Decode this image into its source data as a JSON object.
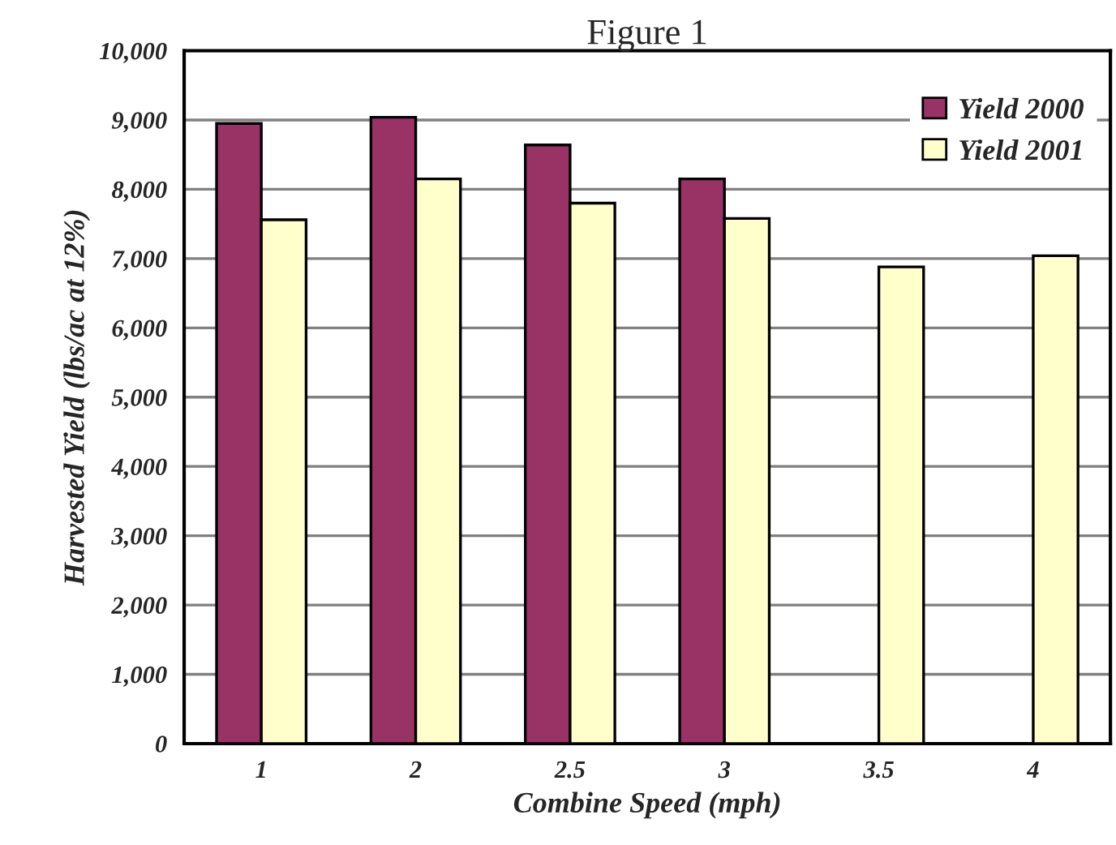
{
  "chart_data": {
    "type": "bar",
    "title": "Figure 1",
    "xlabel": "Combine Speed (mph)",
    "ylabel": "Harvested Yield (lbs/ac at 12%)",
    "categories": [
      "1",
      "2",
      "2.5",
      "3",
      "3.5",
      "4"
    ],
    "series": [
      {
        "name": "Yield 2000",
        "color": "#993366",
        "values": [
          8950,
          9040,
          8640,
          8150,
          null,
          null
        ]
      },
      {
        "name": "Yield 2001",
        "color": "#ffffcc",
        "values": [
          7560,
          8150,
          7800,
          7580,
          6880,
          7040
        ]
      }
    ],
    "ylim": [
      0,
      10000
    ],
    "yticks": [
      {
        "value": 0,
        "label": "0"
      },
      {
        "value": 1000,
        "label": "1,000"
      },
      {
        "value": 2000,
        "label": "2,000"
      },
      {
        "value": 3000,
        "label": "3,000"
      },
      {
        "value": 4000,
        "label": "4,000"
      },
      {
        "value": 5000,
        "label": "5,000"
      },
      {
        "value": 6000,
        "label": "6,000"
      },
      {
        "value": 7000,
        "label": "7,000"
      },
      {
        "value": 8000,
        "label": "8,000"
      },
      {
        "value": 9000,
        "label": "9,000"
      },
      {
        "value": 10000,
        "label": "10,000"
      }
    ],
    "grid": "y",
    "legend": "top right"
  }
}
